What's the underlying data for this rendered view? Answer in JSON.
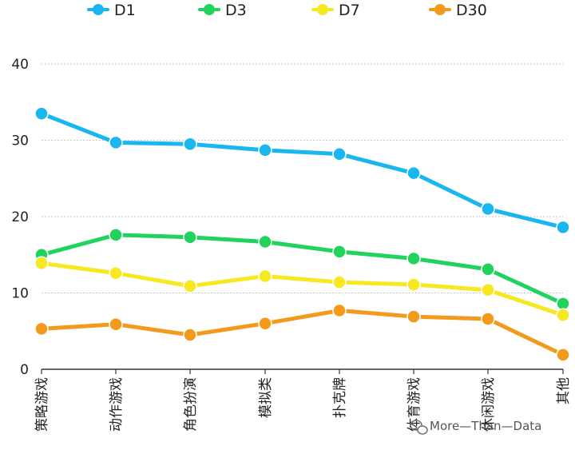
{
  "chart_data": {
    "type": "line",
    "categories": [
      "策略游戏",
      "动作游戏",
      "角色扮演",
      "模拟类",
      "扑克牌",
      "体育游戏",
      "休闲游戏",
      "其他"
    ],
    "series": [
      {
        "name": "D1",
        "color": "#1ab6ef",
        "values": [
          33.5,
          29.7,
          29.5,
          28.7,
          28.2,
          25.7,
          21.0,
          18.6
        ]
      },
      {
        "name": "D3",
        "color": "#1fd35c",
        "values": [
          15.0,
          17.6,
          17.3,
          16.7,
          15.4,
          14.5,
          13.1,
          8.6
        ]
      },
      {
        "name": "D7",
        "color": "#f7e81f",
        "values": [
          13.9,
          12.6,
          10.9,
          12.2,
          11.4,
          11.1,
          10.4,
          7.1
        ]
      },
      {
        "name": "D30",
        "color": "#f39a1c",
        "values": [
          5.3,
          5.9,
          4.5,
          6.0,
          7.7,
          6.9,
          6.6,
          1.9
        ]
      }
    ],
    "ylim": [
      0,
      40
    ],
    "yticks": [
      "0",
      "10",
      "20",
      "30",
      "40"
    ],
    "grid": true,
    "legend": "top"
  },
  "watermark": "More—Than—Data"
}
